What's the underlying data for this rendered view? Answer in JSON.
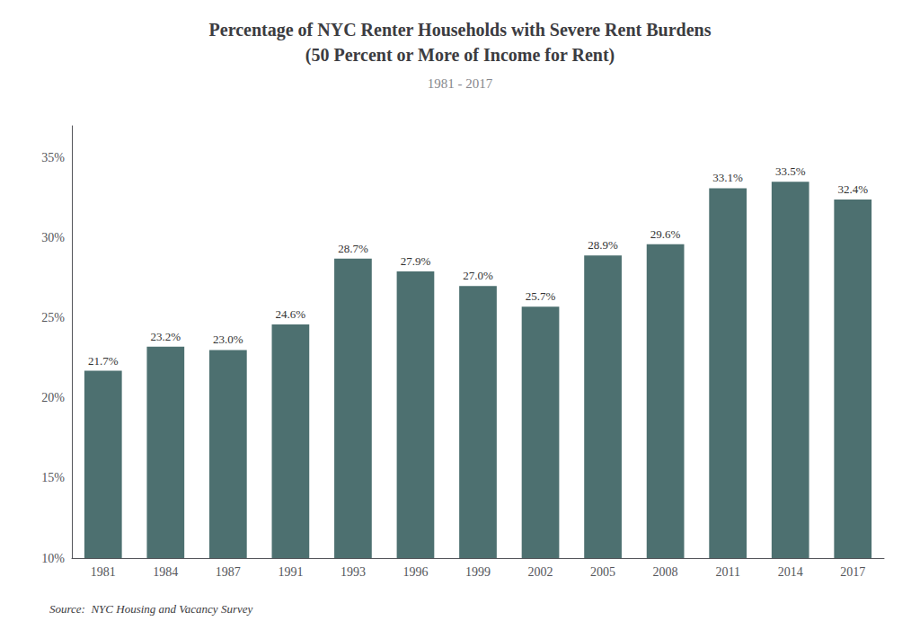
{
  "chart_data": {
    "type": "bar",
    "title": "Percentage of NYC Renter Households with Severe Rent Burdens\n(50 Percent or More of Income for Rent)",
    "subtitle": "1981 - 2017",
    "annotations": [
      "Source:  NYC Housing and Vacancy Survey"
    ],
    "categories": [
      "1981",
      "1984",
      "1987",
      "1991",
      "1993",
      "1996",
      "1999",
      "2002",
      "2005",
      "2008",
      "2011",
      "2014",
      "2017"
    ],
    "values": [
      21.7,
      23.2,
      23.0,
      24.6,
      28.7,
      27.9,
      27.0,
      25.7,
      28.9,
      29.6,
      33.1,
      33.5,
      32.4
    ],
    "value_labels": [
      "21.7%",
      "23.2%",
      "23.0%",
      "24.6%",
      "28.7%",
      "27.9%",
      "27.0%",
      "25.7%",
      "28.9%",
      "29.6%",
      "33.1%",
      "33.5%",
      "32.4%"
    ],
    "data_labels": true,
    "color": "#4d7070",
    "ylim": [
      10,
      37
    ],
    "yticks": [
      {
        "value": 10,
        "label": "10%"
      },
      {
        "value": 15,
        "label": "15%"
      },
      {
        "value": 20,
        "label": "20%"
      },
      {
        "value": 25,
        "label": "25%"
      },
      {
        "value": 30,
        "label": "30%"
      },
      {
        "value": 35,
        "label": "35%"
      }
    ],
    "grid": false
  }
}
